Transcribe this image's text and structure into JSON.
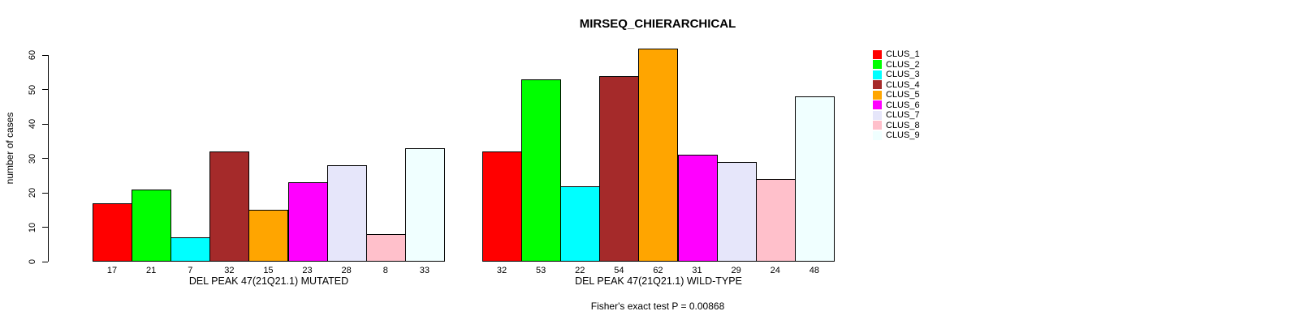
{
  "chart_data": {
    "type": "bar",
    "title": "MIRSEQ_CHIERARCHICAL",
    "ylabel": "number of cases",
    "ylim": [
      0,
      60
    ],
    "yticks": [
      0,
      10,
      20,
      30,
      40,
      50,
      60
    ],
    "grid": false,
    "legend_position": "right",
    "categories": [
      "DEL PEAK 47(21Q21.1) MUTATED",
      "DEL PEAK 47(21Q21.1) WILD-TYPE"
    ],
    "series": [
      {
        "name": "CLUS_1",
        "color": "#FF0000",
        "values": [
          17,
          32
        ]
      },
      {
        "name": "CLUS_2",
        "color": "#00FF00",
        "values": [
          21,
          53
        ]
      },
      {
        "name": "CLUS_3",
        "color": "#00FFFF",
        "values": [
          7,
          22
        ]
      },
      {
        "name": "CLUS_4",
        "color": "#A52A2A",
        "values": [
          32,
          54
        ]
      },
      {
        "name": "CLUS_5",
        "color": "#FFA500",
        "values": [
          15,
          62
        ]
      },
      {
        "name": "CLUS_6",
        "color": "#FF00FF",
        "values": [
          23,
          31
        ]
      },
      {
        "name": "CLUS_7",
        "color": "#E6E6FA",
        "values": [
          28,
          29
        ]
      },
      {
        "name": "CLUS_8",
        "color": "#FFC0CB",
        "values": [
          8,
          24
        ]
      },
      {
        "name": "CLUS_9",
        "color": "#F0FFFF",
        "values": [
          33,
          48
        ]
      }
    ],
    "annotation": "Fisher's exact test P = 0.00868"
  }
}
